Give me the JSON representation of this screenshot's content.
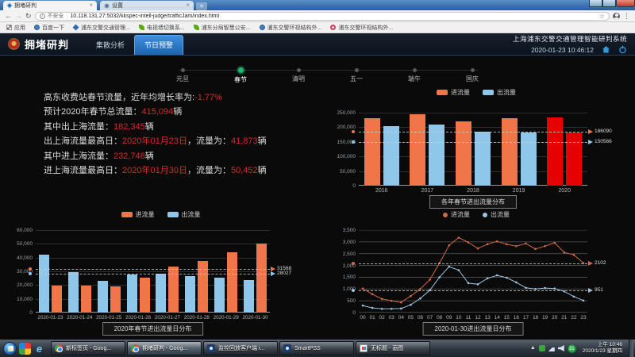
{
  "browser": {
    "tabs": [
      {
        "title": "拥堵研判"
      },
      {
        "title": "设置"
      }
    ],
    "security_label": "不安全",
    "url": "10.118.131.27:5032/kkspec-intell-judge/trafficJam/index.html",
    "bookmarks": [
      {
        "label": "应用",
        "icon": "apps-grid"
      },
      {
        "label": "百度一下",
        "icon": "globe"
      },
      {
        "label": "浦东交警交通管理...",
        "icon": "diamond"
      },
      {
        "label": "电视墙切换系...",
        "icon": "leaf"
      },
      {
        "label": "浦东分局智慧公安...",
        "icon": "leaf"
      },
      {
        "label": "浦东交警环视结构外...",
        "icon": "globe"
      },
      {
        "label": "浦东交警环视结构外...",
        "icon": "flower"
      }
    ]
  },
  "app": {
    "title": "拥堵研判",
    "tabs": [
      {
        "label": "集散分析",
        "active": false
      },
      {
        "label": "节日预警",
        "active": true
      }
    ],
    "system_name": "上海浦东交警交通管理智能研判系统",
    "datetime": "2020-01-23 10:46:12"
  },
  "timeline": {
    "items": [
      {
        "label": "元旦",
        "active": false
      },
      {
        "label": "春节",
        "active": true
      },
      {
        "label": "清明",
        "active": false
      },
      {
        "label": "五一",
        "active": false
      },
      {
        "label": "端午",
        "active": false
      },
      {
        "label": "国庆",
        "active": false
      }
    ]
  },
  "stats": {
    "line1": {
      "prefix": "高东收费站春节流量，近年均增长率为:",
      "value": "-1.77%"
    },
    "line2": {
      "prefix": "预计2020年春节总流量：",
      "value": "415,094",
      "suffix": "辆"
    },
    "line3": {
      "prefix": "其中出上海流量：",
      "value": "182,345",
      "suffix": "辆"
    },
    "line4": {
      "prefix": "出上海流量最高日：",
      "value": "2020年01月23日",
      "mid": "，流量为：",
      "value2": "41,873",
      "suffix": "辆"
    },
    "line5": {
      "prefix": "其中进上海流量：",
      "value": "232,748",
      "suffix": "辆"
    },
    "line6": {
      "prefix": "进上海流量最高日：",
      "value": "2020年01月30日",
      "mid": "，流量为：",
      "value2": "50,452",
      "suffix": "辆"
    }
  },
  "chart_data": [
    {
      "id": "yearly",
      "type": "bar",
      "title": "各年春节进出流量分布",
      "legend": [
        "进流量",
        "出流量"
      ],
      "categories": [
        "2016",
        "2017",
        "2018",
        "2019",
        "2020"
      ],
      "series": [
        {
          "name": "进流量",
          "color": "#f0764a",
          "values": [
            230000,
            244000,
            221500,
            230000,
            232748
          ]
        },
        {
          "name": "出流量",
          "color": "#8fc7ea",
          "values": [
            203400,
            209100,
            185400,
            182500,
            182345
          ]
        }
      ],
      "highlight_category": "2020",
      "highlight_color": "#e60000",
      "y_ticks": [
        0,
        50000,
        100000,
        150000,
        200000,
        250000
      ],
      "ref_lines": [
        {
          "label": "186090",
          "value": 186090,
          "color": "#f0764a"
        },
        {
          "label": "150566",
          "value": 150566,
          "color": "#8fc7ea"
        }
      ]
    },
    {
      "id": "daily",
      "type": "bar",
      "title": "2020年春节进出流量日分布",
      "legend": [
        "进流量",
        "出流量"
      ],
      "categories": [
        "2020-01-23",
        "2020-01-24",
        "2020-01-25",
        "2020-01-26",
        "2020-01-27",
        "2020-01-28",
        "2020-01-29",
        "2020-01-30"
      ],
      "series": [
        {
          "name": "出流量",
          "color": "#8fc7ea",
          "values": [
            41873,
            29500,
            23000,
            27500,
            28200,
            26500,
            25300,
            23500
          ]
        },
        {
          "name": "进流量",
          "color": "#f0764a",
          "values": [
            19700,
            19500,
            19200,
            25300,
            33300,
            37700,
            44100,
            50452
          ]
        }
      ],
      "highlight_category": null,
      "highlight_color": null,
      "y_ticks": [
        0,
        10000,
        20000,
        30000,
        40000,
        50000,
        60000
      ],
      "ref_lines": [
        {
          "label": "31568",
          "value": 31568,
          "color": "#f0764a"
        },
        {
          "label": "28027",
          "value": 28027,
          "color": "#8fc7ea"
        }
      ]
    },
    {
      "id": "hourly",
      "type": "line",
      "title": "2020-01-30进出流量日分布",
      "legend": [
        "进流量",
        "出流量"
      ],
      "x": [
        "00",
        "01",
        "02",
        "03",
        "04",
        "05",
        "06",
        "07",
        "08",
        "09",
        "10",
        "11",
        "12",
        "13",
        "14",
        "15",
        "16",
        "17",
        "18",
        "19",
        "20",
        "21",
        "22",
        "23"
      ],
      "series": [
        {
          "name": "进流量",
          "color": "#cb6a48",
          "values": [
            1020,
            780,
            580,
            500,
            430,
            700,
            1000,
            1400,
            2100,
            2850,
            3180,
            2980,
            2720,
            2900,
            3020,
            2900,
            2820,
            2930,
            2700,
            2820,
            2960,
            2550,
            2450,
            2102
          ]
        },
        {
          "name": "出流量",
          "color": "#9dc3e0",
          "values": [
            300,
            200,
            160,
            160,
            170,
            330,
            600,
            950,
            1500,
            1950,
            1800,
            1250,
            1200,
            1450,
            1580,
            1480,
            1280,
            1050,
            1000,
            1040,
            1020,
            900,
            680,
            510
          ]
        }
      ],
      "y_ticks": [
        0,
        500,
        1000,
        1500,
        2000,
        2500,
        3000,
        3500
      ],
      "ref_lines": [
        {
          "label": "2102",
          "value": 2102,
          "color": "#cb6a48"
        },
        {
          "label": "951",
          "value": 951,
          "color": "#9dc3e0"
        }
      ]
    }
  ],
  "taskbar": {
    "buttons": [
      {
        "label": "新标签页 - Goog...",
        "icon": "chrome",
        "active": false
      },
      {
        "label": "拥堵研判 - Goog...",
        "icon": "chrome",
        "active": true
      },
      {
        "label": "监控回放客户端 i...",
        "icon": "camera",
        "active": false
      },
      {
        "label": "SmartPSS",
        "icon": "camera",
        "active": false
      },
      {
        "label": "无标题 - 画图",
        "icon": "paint",
        "active": false
      }
    ],
    "tray_badge": "31",
    "clock_time": "上午 10:46",
    "clock_date": "2020/1/23 星期四"
  },
  "colors": {
    "accent_blue": "#2d7dd2",
    "bar_in_orange": "#f0764a",
    "bar_out_blue": "#8fc7ea",
    "highlight_red": "#e60000",
    "stat_value_red": "#d62b2b",
    "timeline_green": "#21b573"
  }
}
